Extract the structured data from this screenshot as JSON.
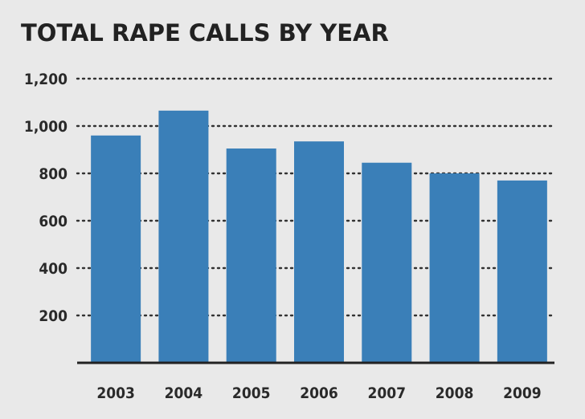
{
  "chart_data": {
    "type": "bar",
    "title": "TOTAL RAPE CALLS BY YEAR",
    "xlabel": "",
    "ylabel": "",
    "categories": [
      "2003",
      "2004",
      "2005",
      "2006",
      "2007",
      "2008",
      "2009"
    ],
    "values": [
      960,
      1065,
      905,
      935,
      845,
      800,
      770
    ],
    "ylim": [
      0,
      1200
    ],
    "yticks": [
      "200",
      "400",
      "600",
      "800",
      "1,000",
      "1,200"
    ],
    "grid": true,
    "legend": "none",
    "colors": {
      "bar": "#3a7fb8",
      "background": "#e9e9e9",
      "text": "#222222"
    }
  }
}
